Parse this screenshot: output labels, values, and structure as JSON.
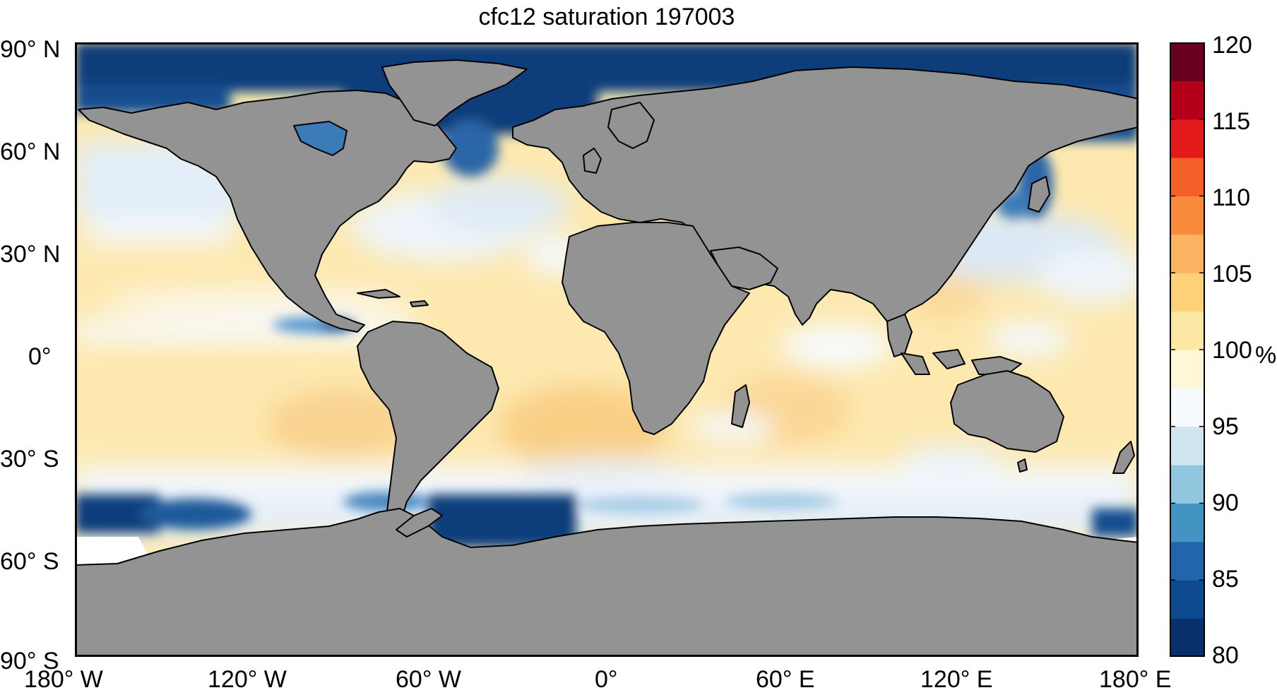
{
  "title": "cfc12 saturation 197003",
  "axes": {
    "x_ticks": [
      {
        "value": -180,
        "label": "180° W"
      },
      {
        "value": -120,
        "label": "120° W"
      },
      {
        "value": -60,
        "label": "60° W"
      },
      {
        "value": 0,
        "label": "0°"
      },
      {
        "value": 60,
        "label": "60° E"
      },
      {
        "value": 120,
        "label": "120° E"
      },
      {
        "value": 180,
        "label": "180° E"
      }
    ],
    "y_ticks": [
      {
        "value": 90,
        "label": "90° N"
      },
      {
        "value": 60,
        "label": "60° N"
      },
      {
        "value": 30,
        "label": "30° N"
      },
      {
        "value": 0,
        "label": "0°"
      },
      {
        "value": -30,
        "label": "30° S"
      },
      {
        "value": -60,
        "label": "60° S"
      },
      {
        "value": -90,
        "label": "90° S"
      }
    ],
    "lon_range": [
      -180,
      180
    ],
    "lat_range": [
      -90,
      90
    ]
  },
  "colorbar": {
    "unit": "%",
    "range": [
      80,
      120
    ],
    "ticks": [
      {
        "value": 120,
        "label": "120"
      },
      {
        "value": 115,
        "label": "115"
      },
      {
        "value": 110,
        "label": "110"
      },
      {
        "value": 105,
        "label": "105"
      },
      {
        "value": 100,
        "label": "100"
      },
      {
        "value": 95,
        "label": "95"
      },
      {
        "value": 90,
        "label": "90"
      },
      {
        "value": 85,
        "label": "85"
      },
      {
        "value": 80,
        "label": "80"
      }
    ],
    "colors": [
      "#08306b",
      "#0d4a8f",
      "#2166ac",
      "#4393c3",
      "#92c5de",
      "#d1e5f0",
      "#f7fbff",
      "#fff7d6",
      "#fee8a6",
      "#fdd07a",
      "#fdb462",
      "#f88c3c",
      "#f4602a",
      "#e31a1c",
      "#b30018",
      "#67001f"
    ]
  },
  "colors": {
    "land": "#939393",
    "coast": "#000000",
    "frame": "#000000"
  }
}
